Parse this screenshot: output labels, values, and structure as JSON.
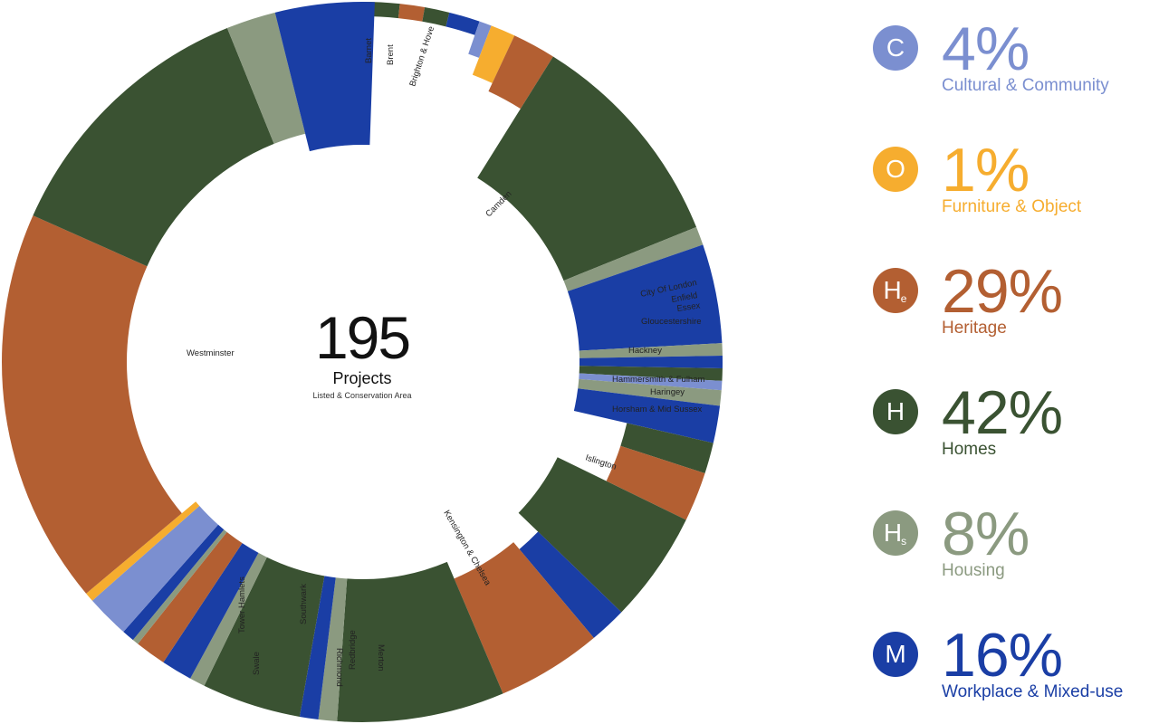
{
  "center": {
    "count": "195",
    "label": "Projects",
    "sublabel": "Listed & Conservation Area"
  },
  "legend": [
    {
      "code": "C",
      "sub": "",
      "percent": "4%",
      "name": "Cultural & Community",
      "color": "#7b8fd0",
      "icon": "cultural-community-badge-icon"
    },
    {
      "code": "O",
      "sub": "",
      "percent": "1%",
      "name": "Furniture & Object",
      "color": "#f6ad2f",
      "icon": "furniture-object-badge-icon"
    },
    {
      "code": "H",
      "sub": "e",
      "percent": "29%",
      "name": "Heritage",
      "color": "#b35f32",
      "icon": "heritage-badge-icon"
    },
    {
      "code": "H",
      "sub": "",
      "percent": "42%",
      "name": "Homes",
      "color": "#3a5232",
      "icon": "homes-badge-icon"
    },
    {
      "code": "H",
      "sub": "s",
      "percent": "8%",
      "name": "Housing",
      "color": "#8b9a80",
      "icon": "housing-badge-icon"
    },
    {
      "code": "M",
      "sub": "",
      "percent": "16%",
      "name": "Workplace & Mixed-use",
      "color": "#1a3ea5",
      "icon": "workplace-mixed-use-badge-icon"
    }
  ],
  "chart_data": {
    "type": "sunburst",
    "total": 195,
    "inner_ring": "boroughs",
    "outer_ring": "project type share within borough",
    "boroughs": [
      "Barnet",
      "Brent",
      "Brighton & Hove",
      "Camden",
      "City Of London",
      "Enfield",
      "Essex",
      "Gloucestershire",
      "Hackney",
      "Hammersmith & Fulham",
      "Haringey",
      "Horsham & Mid Sussex",
      "Islington",
      "Kensington & Chelsea",
      "Merton",
      "Redbridge",
      "Richmond",
      "Southwark",
      "Swale",
      "Tower Hamlets",
      "Westminster"
    ],
    "segments": [
      {
        "type": "Homes",
        "deg": 6
      },
      {
        "type": "Heritage",
        "deg": 4
      },
      {
        "type": "Homes",
        "deg": 4
      },
      {
        "type": "Workplace & Mixed-use",
        "deg": 5
      },
      {
        "type": "Cultural & Community",
        "deg": 2
      },
      {
        "type": "Furniture & Object",
        "deg": 4
      },
      {
        "type": "Heritage",
        "deg": 7
      },
      {
        "type": "Homes",
        "deg": 36
      },
      {
        "type": "Housing",
        "deg": 3
      },
      {
        "type": "Workplace & Mixed-use",
        "deg": 16
      },
      {
        "type": "Housing",
        "deg": 2
      },
      {
        "type": "Workplace & Mixed-use",
        "deg": 2
      },
      {
        "type": "Homes",
        "deg": 2
      },
      {
        "type": "Cultural & Community",
        "deg": 1.5
      },
      {
        "type": "Housing",
        "deg": 2.5
      },
      {
        "type": "Workplace & Mixed-use",
        "deg": 6
      },
      {
        "type": "Homes",
        "deg": 5
      },
      {
        "type": "Heritage",
        "deg": 8
      },
      {
        "type": "Homes",
        "deg": 18
      },
      {
        "type": "Workplace & Mixed-use",
        "deg": 6
      },
      {
        "type": "Heritage",
        "deg": 17
      },
      {
        "type": "Homes",
        "deg": 27
      },
      {
        "type": "Housing",
        "deg": 3
      },
      {
        "type": "Workplace & Mixed-use",
        "deg": 3
      },
      {
        "type": "Homes",
        "deg": 16
      },
      {
        "type": "Housing",
        "deg": 2.5
      },
      {
        "type": "Workplace & Mixed-use",
        "deg": 5
      },
      {
        "type": "Heritage",
        "deg": 5
      },
      {
        "type": "Housing",
        "deg": 1
      },
      {
        "type": "Workplace & Mixed-use",
        "deg": 2
      },
      {
        "type": "Cultural & Community",
        "deg": 7
      },
      {
        "type": "Furniture & Object",
        "deg": 1.5
      },
      {
        "type": "Heritage",
        "deg": 64
      },
      {
        "type": "Homes",
        "deg": 44
      },
      {
        "type": "Housing",
        "deg": 8
      },
      {
        "type": "Workplace & Mixed-use",
        "deg": 16
      }
    ],
    "colors": {
      "Cultural & Community": "#7b8fd0",
      "Furniture & Object": "#f6ad2f",
      "Heritage": "#b35f32",
      "Homes": "#3a5232",
      "Housing": "#8b9a80",
      "Workplace & Mixed-use": "#1a3ea5"
    },
    "labels": [
      {
        "text": "Barnet",
        "orient": "vertical"
      },
      {
        "text": "Brent",
        "orient": "vertical"
      },
      {
        "text": "Brighton & Hove",
        "orient": "vertical"
      },
      {
        "text": "Camden",
        "orient": "radial"
      },
      {
        "text": "City Of London",
        "orient": "radial"
      },
      {
        "text": "Enfield",
        "orient": "radial"
      },
      {
        "text": "Essex",
        "orient": "radial"
      },
      {
        "text": "Gloucestershire",
        "orient": "horizontal"
      },
      {
        "text": "Hackney",
        "orient": "horizontal"
      },
      {
        "text": "Hammersmith & Fulham",
        "orient": "horizontal"
      },
      {
        "text": "Haringey",
        "orient": "horizontal"
      },
      {
        "text": "Horsham & Mid Sussex",
        "orient": "horizontal"
      },
      {
        "text": "Islington",
        "orient": "radial"
      },
      {
        "text": "Kensington & Chelsea",
        "orient": "radial"
      },
      {
        "text": "Merton",
        "orient": "vertical"
      },
      {
        "text": "Redbridge",
        "orient": "vertical"
      },
      {
        "text": "Richmond",
        "orient": "vertical"
      },
      {
        "text": "Southwark",
        "orient": "vertical"
      },
      {
        "text": "Swale",
        "orient": "vertical"
      },
      {
        "text": "Tower Hamlets",
        "orient": "vertical"
      },
      {
        "text": "Westminster",
        "orient": "horizontal"
      }
    ]
  }
}
